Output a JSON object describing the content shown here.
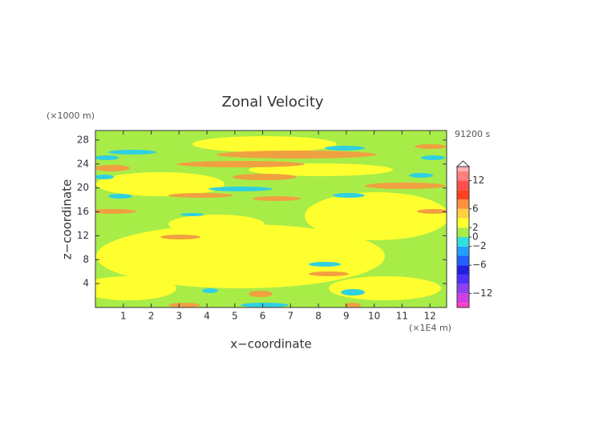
{
  "chart_data": {
    "type": "contour",
    "title": "Zonal Velocity",
    "x_label": "x−coordinate",
    "y_label": "z−coordinate",
    "x_unit": "(×1E4 m)",
    "y_unit": "(×1000 m)",
    "time_label": "91200 s",
    "xlim": [
      0,
      12.6
    ],
    "xticks": [
      1,
      2,
      3,
      4,
      5,
      6,
      7,
      8,
      9,
      10,
      11,
      12
    ],
    "ylim": [
      0,
      29.6
    ],
    "yticks": [
      4,
      8,
      12,
      16,
      20,
      24,
      28
    ],
    "colorbar": {
      "lim": [
        -15,
        15
      ],
      "levels": [
        -14,
        -12,
        -10,
        -8,
        -6,
        -4,
        -2,
        0,
        2,
        4,
        6,
        8,
        10,
        12,
        14
      ],
      "colors": [
        "#ff40c0",
        "#d040e0",
        "#9040f0",
        "#5030ff",
        "#2020e0",
        "#2060ff",
        "#20a0ff",
        "#30e0e0",
        "#a8ec48",
        "#ffff30",
        "#ffd040",
        "#ff9040",
        "#ff4020",
        "#ff5050",
        "#ff8080",
        "#ffb0b0"
      ],
      "ticks": [
        12,
        6,
        2,
        0,
        {
          "value": -2,
          "label": "−2"
        },
        {
          "value": -6,
          "label": "−6"
        },
        {
          "value": -12,
          "label": "−12"
        }
      ]
    }
  }
}
